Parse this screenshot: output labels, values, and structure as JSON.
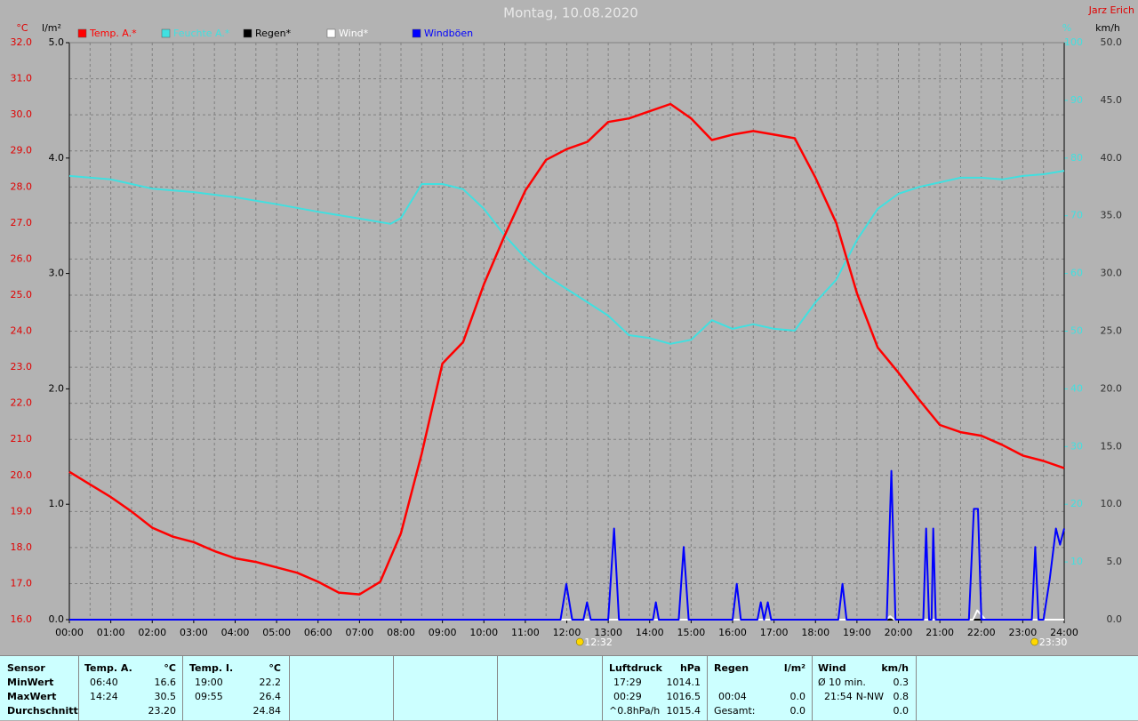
{
  "chart_data": {
    "type": "line",
    "title": "Montag, 10.08.2020",
    "author": "Jarz Erich",
    "ylabel": "°C",
    "y2label": "l/m²",
    "y3label": "%",
    "y4label": "km/h",
    "grid": true,
    "xlim": [
      0,
      24
    ],
    "xticks": [
      {
        "value": 0,
        "label": "00:00"
      },
      {
        "value": 1,
        "label": "01:00"
      },
      {
        "value": 2,
        "label": "02:00"
      },
      {
        "value": 3,
        "label": "03:00"
      },
      {
        "value": 4,
        "label": "04:00"
      },
      {
        "value": 5,
        "label": "05:00"
      },
      {
        "value": 6,
        "label": "06:00"
      },
      {
        "value": 7,
        "label": "07:00"
      },
      {
        "value": 8,
        "label": "08:00"
      },
      {
        "value": 9,
        "label": "09:00"
      },
      {
        "value": 10,
        "label": "10:00"
      },
      {
        "value": 11,
        "label": "11:00"
      },
      {
        "value": 12,
        "label": "12:00"
      },
      {
        "value": 13,
        "label": "13:00"
      },
      {
        "value": 14,
        "label": "14:00"
      },
      {
        "value": 15,
        "label": "15:00"
      },
      {
        "value": 16,
        "label": "16:00"
      },
      {
        "value": 17,
        "label": "17:00"
      },
      {
        "value": 18,
        "label": "18:00"
      },
      {
        "value": 19,
        "label": "19:00"
      },
      {
        "value": 20,
        "label": "20:00"
      },
      {
        "value": 21,
        "label": "21:00"
      },
      {
        "value": 22,
        "label": "22:00"
      },
      {
        "value": 23,
        "label": "23:00"
      },
      {
        "value": 24,
        "label": "24:00"
      }
    ],
    "ylim": [
      16,
      32
    ],
    "yticks": [
      {
        "value": 16,
        "label": "16.0"
      },
      {
        "value": 17,
        "label": "17.0"
      },
      {
        "value": 18,
        "label": "18.0"
      },
      {
        "value": 19,
        "label": "19.0"
      },
      {
        "value": 20,
        "label": "20.0"
      },
      {
        "value": 21,
        "label": "21.0"
      },
      {
        "value": 22,
        "label": "22.0"
      },
      {
        "value": 23,
        "label": "23.0"
      },
      {
        "value": 24,
        "label": "24.0"
      },
      {
        "value": 25,
        "label": "25.0"
      },
      {
        "value": 26,
        "label": "26.0"
      },
      {
        "value": 27,
        "label": "27.0"
      },
      {
        "value": 28,
        "label": "28.0"
      },
      {
        "value": 29,
        "label": "29.0"
      },
      {
        "value": 30,
        "label": "30.0"
      },
      {
        "value": 31,
        "label": "31.0"
      },
      {
        "value": 32,
        "label": "32.0"
      }
    ],
    "y2lim": [
      0,
      5
    ],
    "y2ticks": [
      {
        "value": 0,
        "label": "0.0"
      },
      {
        "value": 1,
        "label": "1.0"
      },
      {
        "value": 2,
        "label": "2.0"
      },
      {
        "value": 3,
        "label": "3.0"
      },
      {
        "value": 4,
        "label": "4.0"
      },
      {
        "value": 5,
        "label": "5.0"
      }
    ],
    "y3lim": [
      0,
      100
    ],
    "y3ticks": [
      10,
      20,
      30,
      40,
      50,
      60,
      70,
      80,
      90,
      100
    ],
    "y4lim": [
      0,
      50
    ],
    "y4ticks": [
      {
        "value": 0,
        "label": "0.0"
      },
      {
        "value": 5,
        "label": "5.0"
      },
      {
        "value": 10,
        "label": "10.0"
      },
      {
        "value": 15,
        "label": "15.0"
      },
      {
        "value": 20,
        "label": "20.0"
      },
      {
        "value": 25,
        "label": "25.0"
      },
      {
        "value": 30,
        "label": "30.0"
      },
      {
        "value": 35,
        "label": "35.0"
      },
      {
        "value": 40,
        "label": "40.0"
      },
      {
        "value": 45,
        "label": "45.0"
      },
      {
        "value": 50,
        "label": "50.0"
      }
    ],
    "series": [
      {
        "name": "Temp. A.*",
        "color": "#ff0000",
        "axis": "y",
        "x": [
          0,
          0.5,
          1,
          1.5,
          2,
          2.5,
          3,
          3.5,
          4,
          4.5,
          5,
          5.5,
          6,
          6.5,
          7,
          7.5,
          8,
          8.5,
          9,
          9.5,
          10,
          10.5,
          11,
          11.5,
          12,
          12.5,
          13,
          13.5,
          14,
          14.5,
          15,
          15.5,
          16,
          16.5,
          17,
          17.5,
          18,
          18.5,
          19,
          19.5,
          20,
          20.5,
          21,
          21.5,
          22,
          22.5,
          23,
          23.5,
          24
        ],
        "values": [
          20.1,
          19.75,
          19.4,
          19.0,
          18.55,
          18.3,
          18.15,
          17.9,
          17.7,
          17.6,
          17.45,
          17.3,
          17.05,
          16.75,
          16.7,
          17.05,
          18.4,
          20.6,
          23.1,
          23.7,
          25.3,
          26.65,
          27.9,
          28.75,
          29.05,
          29.25,
          29.8,
          29.9,
          30.1,
          30.3,
          29.9,
          29.3,
          29.45,
          29.55,
          29.45,
          29.35,
          28.25,
          27.0,
          25.05,
          23.55,
          22.85,
          22.1,
          21.4,
          21.2,
          21.1,
          20.85,
          20.55,
          20.4,
          20.2
        ]
      },
      {
        "name": "Feuchte A.*",
        "color": "#40e0e0",
        "axis": "y3",
        "x": [
          0,
          1,
          2,
          3,
          4,
          5,
          6,
          7,
          7.75,
          8,
          8.5,
          9,
          9.5,
          10,
          10.5,
          11,
          11.5,
          12,
          12.5,
          13,
          13.5,
          14,
          14.5,
          15,
          15.5,
          16,
          16.5,
          17,
          17.5,
          18,
          18.5,
          19,
          19.5,
          20,
          20.5,
          21,
          21.5,
          22,
          22.5,
          23,
          23.5,
          24
        ],
        "values": [
          76.9,
          76.3,
          74.7,
          74.1,
          73.2,
          72.0,
          70.7,
          69.5,
          68.6,
          69.6,
          75.5,
          75.5,
          74.6,
          71.2,
          66.6,
          62.7,
          59.6,
          57.3,
          55.0,
          52.7,
          49.3,
          48.8,
          47.8,
          48.5,
          51.9,
          50.4,
          51.2,
          50.4,
          50.1,
          55.0,
          58.9,
          65.8,
          71.2,
          73.8,
          75.0,
          75.8,
          76.6,
          76.6,
          76.3,
          76.9,
          77.2,
          77.8
        ]
      },
      {
        "name": "Regen*",
        "color": "#000000",
        "axis": "y2",
        "x": [
          0,
          24
        ],
        "values": [
          0,
          0
        ]
      },
      {
        "name": "Wind*",
        "color": "#ffffff",
        "axis": "y4",
        "x": [
          0,
          19.7,
          19.8,
          19.9,
          21.8,
          21.9,
          22.1,
          24
        ],
        "values": [
          0,
          0,
          0.3,
          0,
          0,
          0.8,
          0,
          0
        ]
      },
      {
        "name": "Windböen",
        "color": "#0000ff",
        "axis": "y4",
        "x": [
          0,
          11.85,
          11.99,
          12.13,
          12.4,
          12.49,
          12.58,
          13.0,
          13.14,
          13.26,
          14.08,
          14.15,
          14.22,
          14.7,
          14.82,
          14.94,
          16.0,
          16.1,
          16.2,
          16.6,
          16.68,
          16.76,
          16.85,
          16.93,
          18.55,
          18.65,
          18.75,
          19.72,
          19.83,
          19.93,
          20.6,
          20.67,
          20.74,
          20.8,
          20.84,
          20.9,
          21.7,
          21.82,
          21.92,
          22.0,
          23.22,
          23.3,
          23.38,
          23.5,
          23.65,
          23.8,
          23.9,
          24
        ],
        "values": [
          0,
          0,
          3.1,
          0,
          0,
          1.5,
          0,
          0,
          7.9,
          0,
          0,
          1.5,
          0,
          0,
          6.3,
          0,
          0,
          3.1,
          0,
          0,
          1.5,
          0,
          1.5,
          0,
          0,
          3.1,
          0,
          0,
          12.9,
          0,
          0,
          7.9,
          0,
          0,
          7.9,
          0,
          0,
          9.6,
          9.6,
          0,
          0,
          6.3,
          0,
          0,
          3.5,
          7.9,
          6.5,
          7.9
        ]
      }
    ],
    "annotations": [
      {
        "x": 12.53,
        "label": "12:32"
      },
      {
        "x": 23.5,
        "label": "23:30"
      }
    ]
  },
  "stats": {
    "sensor": {
      "title": "Sensor",
      "rows": [
        "MinWert",
        "MaxWert",
        "Durchschnitt"
      ]
    },
    "temp_a": {
      "title": "Temp. A.",
      "unit": "°C",
      "min_time": "06:40",
      "min": "16.6",
      "max_time": "14:24",
      "max": "30.5",
      "avg": "23.20"
    },
    "temp_i": {
      "title": "Temp. I.",
      "unit": "°C",
      "min_time": "19:00",
      "min": "22.2",
      "max_time": "09:55",
      "max": "26.4",
      "avg": "24.84"
    },
    "pressure": {
      "title": "Luftdruck",
      "unit": "hPa",
      "min_time": "17:29",
      "min": "1014.1",
      "max_time": "00:29",
      "max": "1016.5",
      "trend": "^0.8hPa/h",
      "avg": "1015.4"
    },
    "rain": {
      "title": "Regen",
      "unit": "l/m²",
      "max_time": "00:04",
      "max": "0.0",
      "total_label": "Gesamt:",
      "total": "0.0"
    },
    "wind": {
      "title": "Wind",
      "unit": "km/h",
      "avg_label": "Ø 10 min.",
      "avg": "0.3",
      "max_time": "21:54",
      "max_dir": "N-NW",
      "max": "0.8",
      "total": "0.0"
    }
  }
}
